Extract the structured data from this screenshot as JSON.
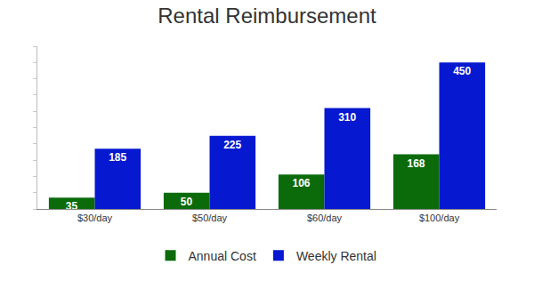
{
  "chart_data": {
    "type": "bar",
    "title": "Rental Reimbursement",
    "categories": [
      "$30/day",
      "$50/day",
      "$60/day",
      "$100/day"
    ],
    "series": [
      {
        "name": "Annual Cost",
        "color": "#0b6b0b",
        "values": [
          35,
          50,
          106,
          168
        ]
      },
      {
        "name": "Weekly Rental",
        "color": "#0618d0",
        "values": [
          185,
          225,
          310,
          450
        ]
      }
    ],
    "ylim": [
      0,
      500
    ],
    "yticks": [
      0,
      50,
      100,
      150,
      200,
      250,
      300,
      350,
      400,
      450,
      500
    ],
    "tick_labels": "x",
    "data_labels": true,
    "legend": "bottom"
  }
}
